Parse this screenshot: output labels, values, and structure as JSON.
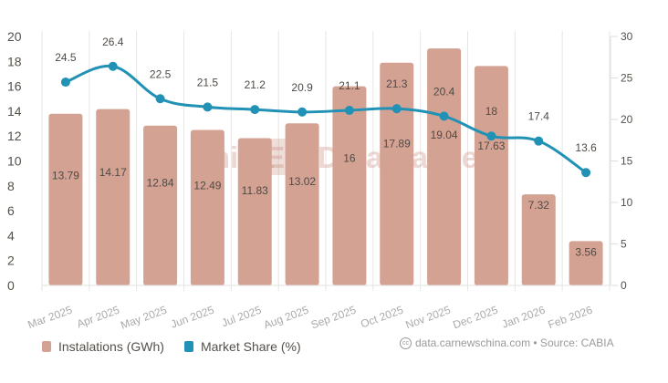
{
  "chart_data": {
    "type": "bar+line",
    "categories": [
      "Mar 2025",
      "Apr 2025",
      "May 2025",
      "Jun 2025",
      "Jul 2025",
      "Aug 2025",
      "Sep 2025",
      "Oct 2025",
      "Nov 2025",
      "Dec 2025",
      "Jan 2026",
      "Feb 2026"
    ],
    "series": [
      {
        "name": "Instalations (GWh)",
        "type": "bar",
        "axis": "left",
        "color": "#d4a293",
        "values": [
          13.79,
          14.17,
          12.84,
          12.49,
          11.83,
          13.02,
          16,
          17.89,
          19.04,
          17.63,
          7.32,
          3.56
        ],
        "labels": [
          "13.79",
          "14.17",
          "12.84",
          "12.49",
          "11.83",
          "13.02",
          "16",
          "17.89",
          "19.04",
          "17.63",
          "7.32",
          "3.56"
        ]
      },
      {
        "name": "Market Share (%)",
        "type": "line",
        "axis": "right",
        "color": "#2192b6",
        "values": [
          24.5,
          26.4,
          22.5,
          21.5,
          21.2,
          20.9,
          21.1,
          21.3,
          20.4,
          18,
          17.4,
          13.6
        ],
        "labels": [
          "24.5",
          "26.4",
          "22.5",
          "21.5",
          "21.2",
          "20.9",
          "21.1",
          "21.3",
          "20.4",
          "18",
          "17.4",
          "13.6"
        ]
      }
    ],
    "y_left": {
      "range": [
        0,
        20
      ],
      "ticks": [
        "0",
        "2",
        "4",
        "6",
        "8",
        "10",
        "12",
        "14",
        "16",
        "18",
        "20"
      ]
    },
    "y_right": {
      "range": [
        0,
        30
      ],
      "ticks": [
        "0",
        "5",
        "10",
        "15",
        "20",
        "25",
        "30"
      ]
    },
    "grid": "vertical",
    "legend": "bottom-left",
    "watermark": {
      "part1": "China",
      "part2": "EV",
      "part3": "DataTracker"
    }
  },
  "footer": {
    "source_icon": "creative-commons-icon",
    "source_text": "data.carnewschina.com • Source: CABIA"
  }
}
